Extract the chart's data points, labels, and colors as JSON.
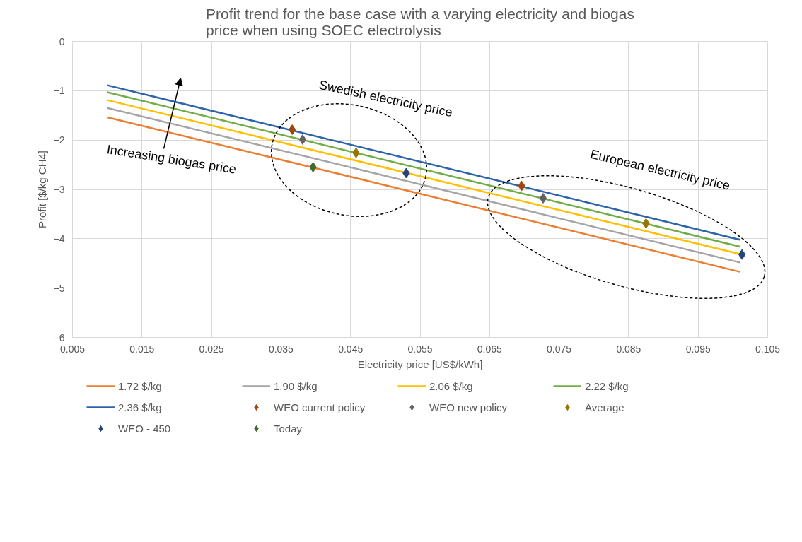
{
  "chart_data": {
    "type": "line",
    "title": "Profit trend for the base case with a varying electricity and biogas price when using SOEC electrolysis",
    "xlabel": "Electricity price [US$/kWh]",
    "ylabel": "Profit [$/kg CH4]",
    "xlim": [
      0.005,
      0.105
    ],
    "xticks": [
      0.005,
      0.015,
      0.025,
      0.035,
      0.045,
      0.055,
      0.065,
      0.075,
      0.085,
      0.095,
      0.105
    ],
    "ylim": [
      -6,
      0
    ],
    "yticks": [
      -6,
      -5,
      -4,
      -3,
      -2,
      -1,
      0
    ],
    "grid": true,
    "legend": "bottom",
    "line_style": "solid",
    "annotations": [
      "Swedish electricity price",
      "European electricity price",
      "Increasing biogas price"
    ],
    "series": [
      {
        "name": "1.72 $/kg",
        "color": "#ed7d31",
        "x": [
          0.01,
          0.101
        ],
        "values": [
          -1.54,
          -4.67
        ]
      },
      {
        "name": "1.90 $/kg",
        "color": "#a5a5a5",
        "x": [
          0.01,
          0.101
        ],
        "values": [
          -1.35,
          -4.48
        ]
      },
      {
        "name": "2.06 $/kg",
        "color": "#ffc000",
        "x": [
          0.01,
          0.101
        ],
        "values": [
          -1.19,
          -4.31
        ]
      },
      {
        "name": "2.22 $/kg",
        "color": "#70ad47",
        "x": [
          0.01,
          0.101
        ],
        "values": [
          -1.03,
          -4.16
        ]
      },
      {
        "name": "2.36 $/kg",
        "color": "#2e64a8",
        "x": [
          0.01,
          0.101
        ],
        "values": [
          -0.89,
          -4.02
        ]
      },
      {
        "name": "WEO current policy",
        "type": "scatter",
        "marker": "diamond",
        "color": "#9e480e",
        "x": [
          0.0366,
          0.0696
        ],
        "values": [
          -1.79,
          -2.93
        ]
      },
      {
        "name": "WEO new policy",
        "type": "scatter",
        "marker": "diamond",
        "color": "#636363",
        "x": [
          0.0381,
          0.0727
        ],
        "values": [
          -1.99,
          -3.18
        ]
      },
      {
        "name": "Average",
        "type": "scatter",
        "marker": "diamond",
        "color": "#997300",
        "x": [
          0.0458,
          0.0875
        ],
        "values": [
          -2.26,
          -3.69
        ]
      },
      {
        "name": "WEO - 450",
        "type": "scatter",
        "marker": "diamond",
        "color": "#264478",
        "x": [
          0.053,
          0.1013
        ],
        "values": [
          -2.67,
          -4.32
        ]
      },
      {
        "name": "Today",
        "type": "scatter",
        "marker": "diamond",
        "color": "#43682b",
        "x": [
          0.0396
        ],
        "values": [
          -2.55
        ]
      }
    ]
  }
}
